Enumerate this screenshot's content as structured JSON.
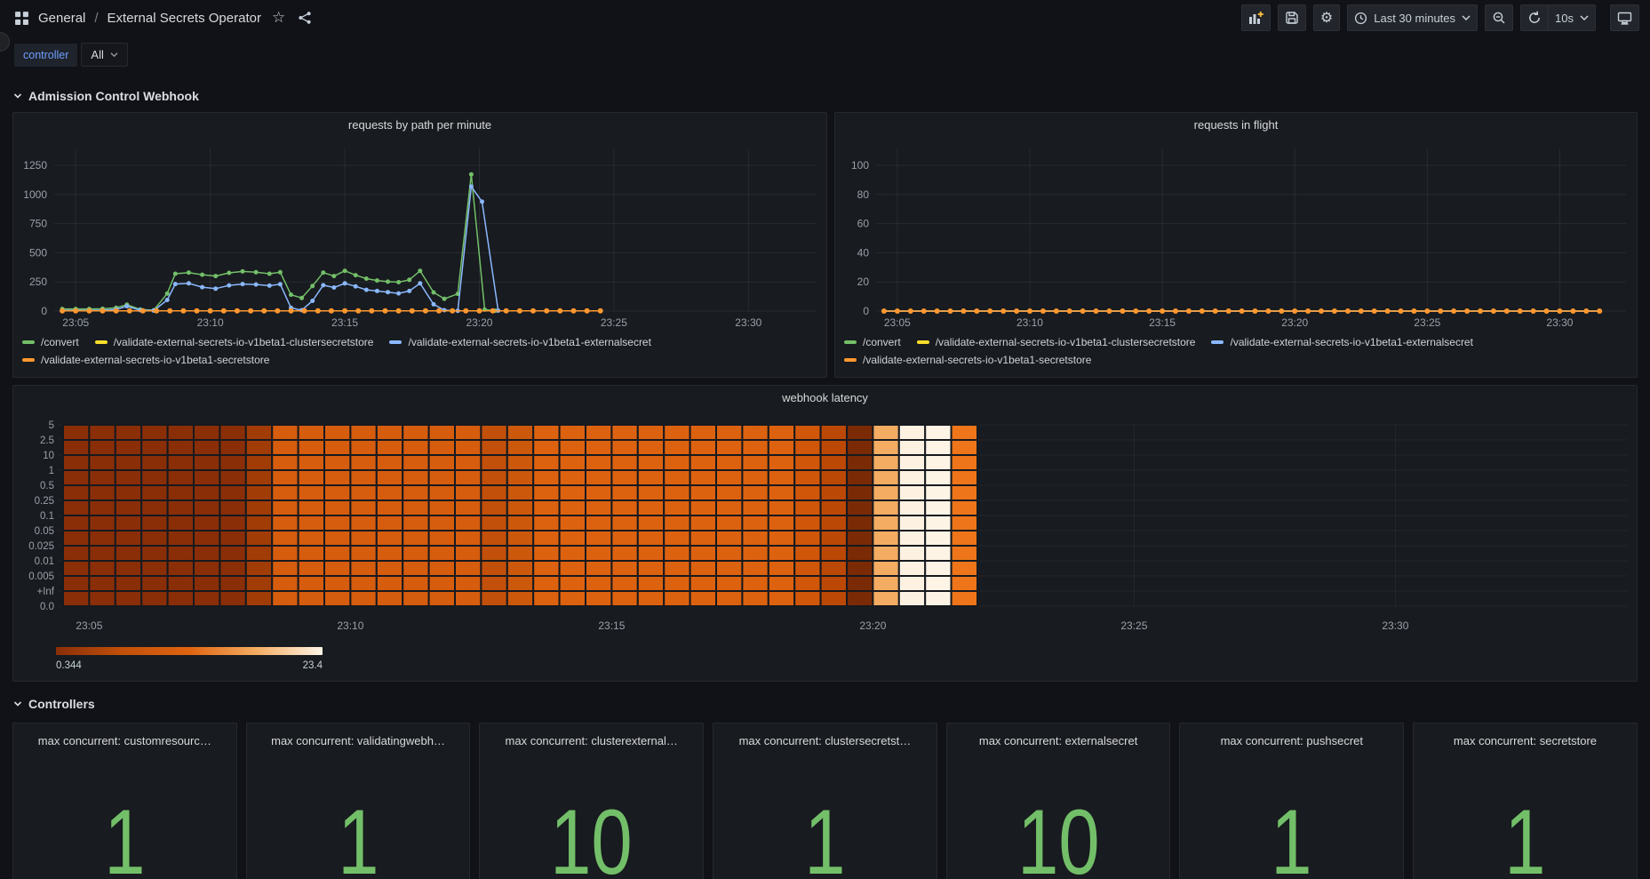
{
  "nav": {
    "breadcrumb": {
      "section": "General",
      "separator": "/",
      "title": "External Secrets Operator"
    },
    "time_range_label": "Last 30 minutes",
    "refresh_interval": "10s"
  },
  "icons": {
    "breadcrumb": "apps-grid-icon",
    "favorite": "star-icon",
    "share": "share-icon",
    "toolbar": [
      "panel-add-icon",
      "save-icon",
      "settings-icon",
      "clock-icon",
      "chevron-down-icon",
      "zoom-out-icon",
      "refresh-icon",
      "monitor-icon"
    ]
  },
  "variables": {
    "controller_label": "controller",
    "controller_value": "All"
  },
  "sections": {
    "admission": "Admission Control Webhook",
    "controllers": "Controllers"
  },
  "colors": {
    "green": "#73bf69",
    "yellow": "#fade2a",
    "blue": "#8ab8ff",
    "orange": "#ff9830",
    "stat_green": "#73bf69",
    "axis_text": "#9aa0ab",
    "grid": "rgba(255,255,255,0.07)"
  },
  "panels": {
    "requests_by_path": {
      "title": "requests by path per minute",
      "chart_data": {
        "type": "line",
        "x_axis": {
          "start_min": 4.2,
          "end_min": 32.5,
          "ticks": [
            5,
            10,
            15,
            20,
            25,
            30
          ],
          "tick_labels": [
            "23:05",
            "23:10",
            "23:15",
            "23:20",
            "23:25",
            "23:30"
          ]
        },
        "y_axis": {
          "min": 0,
          "max": 1250,
          "ticks": [
            0,
            250,
            500,
            750,
            1000,
            1250
          ]
        },
        "series": [
          {
            "name": "/convert",
            "color": "#73bf69",
            "dot_r": 2.5,
            "points": [
              [
                4.5,
                18
              ],
              [
                5,
                18
              ],
              [
                5.5,
                18
              ],
              [
                6,
                20
              ],
              [
                6.5,
                28
              ],
              [
                6.9,
                55
              ],
              [
                7.4,
                14
              ],
              [
                7.9,
                8
              ],
              [
                8.4,
                150
              ],
              [
                8.7,
                320
              ],
              [
                9.2,
                330
              ],
              [
                9.7,
                312
              ],
              [
                10.2,
                300
              ],
              [
                10.7,
                328
              ],
              [
                11.2,
                340
              ],
              [
                11.7,
                333
              ],
              [
                12.2,
                320
              ],
              [
                12.6,
                333
              ],
              [
                13,
                140
              ],
              [
                13.4,
                112
              ],
              [
                13.8,
                215
              ],
              [
                14.2,
                330
              ],
              [
                14.6,
                300
              ],
              [
                15,
                345
              ],
              [
                15.4,
                308
              ],
              [
                15.8,
                278
              ],
              [
                16.2,
                262
              ],
              [
                16.6,
                252
              ],
              [
                17,
                248
              ],
              [
                17.4,
                268
              ],
              [
                17.8,
                345
              ],
              [
                18.3,
                160
              ],
              [
                18.7,
                105
              ],
              [
                19.2,
                148
              ],
              [
                19.7,
                1172
              ],
              [
                20.2,
                12
              ],
              [
                20.6,
                3
              ]
            ]
          },
          {
            "name": "/validate-external-secrets-io-v1beta1-clustersecretstore",
            "color": "#fade2a",
            "dot_r": 2.5,
            "flat": {
              "start": 4.5,
              "end": 24.5,
              "step": 0.5,
              "value": 2
            }
          },
          {
            "name": "/validate-external-secrets-io-v1beta1-externalsecret",
            "color": "#8ab8ff",
            "dot_r": 2.5,
            "points": [
              [
                4.5,
                5
              ],
              [
                5,
                5
              ],
              [
                5.5,
                6
              ],
              [
                6,
                8
              ],
              [
                6.5,
                14
              ],
              [
                6.9,
                42
              ],
              [
                7.4,
                8
              ],
              [
                7.9,
                4
              ],
              [
                8.4,
                95
              ],
              [
                8.7,
                232
              ],
              [
                9.2,
                238
              ],
              [
                9.7,
                205
              ],
              [
                10.2,
                192
              ],
              [
                10.7,
                220
              ],
              [
                11.2,
                232
              ],
              [
                11.7,
                228
              ],
              [
                12.2,
                218
              ],
              [
                12.6,
                230
              ],
              [
                13,
                28
              ],
              [
                13.4,
                8
              ],
              [
                13.8,
                88
              ],
              [
                14.2,
                222
              ],
              [
                14.6,
                202
              ],
              [
                15,
                238
              ],
              [
                15.4,
                212
              ],
              [
                15.8,
                182
              ],
              [
                16.2,
                172
              ],
              [
                16.6,
                162
              ],
              [
                17,
                152
              ],
              [
                17.4,
                172
              ],
              [
                17.8,
                238
              ],
              [
                18.3,
                58
              ],
              [
                18.7,
                8
              ],
              [
                19.2,
                2
              ],
              [
                19.7,
                1068
              ],
              [
                20.1,
                938
              ],
              [
                20.7,
                4
              ]
            ]
          },
          {
            "name": "/validate-external-secrets-io-v1beta1-secretstore",
            "color": "#ff9830",
            "dot_r": 3,
            "flat": {
              "start": 4.5,
              "end": 24.5,
              "step": 0.5,
              "value": 2
            }
          }
        ]
      }
    },
    "requests_in_flight": {
      "title": "requests in flight",
      "chart_data": {
        "type": "line",
        "x_axis": {
          "start_min": 4.2,
          "end_min": 32.5,
          "ticks": [
            5,
            10,
            15,
            20,
            25,
            30
          ],
          "tick_labels": [
            "23:05",
            "23:10",
            "23:15",
            "23:20",
            "23:25",
            "23:30"
          ]
        },
        "y_axis": {
          "min": 0,
          "max": 100,
          "ticks": [
            0,
            20,
            40,
            60,
            80,
            100
          ]
        },
        "series": [
          {
            "name": "/convert",
            "color": "#73bf69",
            "dot_r": 2.5,
            "flat": {
              "start": 4.5,
              "end": 31.5,
              "step": 0.5,
              "value": 0
            }
          },
          {
            "name": "/validate-external-secrets-io-v1beta1-clustersecretstore",
            "color": "#fade2a",
            "dot_r": 2.5,
            "flat": {
              "start": 4.5,
              "end": 31.5,
              "step": 0.5,
              "value": 0
            }
          },
          {
            "name": "/validate-external-secrets-io-v1beta1-externalsecret",
            "color": "#8ab8ff",
            "dot_r": 2.5,
            "flat": {
              "start": 4.5,
              "end": 31.5,
              "step": 0.5,
              "value": 0
            }
          },
          {
            "name": "/validate-external-secrets-io-v1beta1-secretstore",
            "color": "#ff9830",
            "dot_r": 3,
            "flat": {
              "start": 4.5,
              "end": 31.5,
              "step": 0.5,
              "value": 0
            }
          }
        ]
      }
    },
    "webhook_latency": {
      "title": "webhook latency",
      "chart_data": {
        "type": "heatmap",
        "y_labels": [
          "5",
          "2.5",
          "10",
          "1",
          "0.5",
          "0.25",
          "0.1",
          "0.05",
          "0.025",
          "0.01",
          "0.005",
          "+Inf",
          "0.0"
        ],
        "rows": 12,
        "x_axis": {
          "ticks": [
            5,
            10,
            15,
            20,
            25,
            30
          ],
          "tick_labels": [
            "23:05",
            "23:10",
            "23:15",
            "23:20",
            "23:25",
            "23:30"
          ]
        },
        "col_start_min": 4.5,
        "col_duration_min": 0.5,
        "columns": [
          "#8a2e08",
          "#8a2e08",
          "#8a2e08",
          "#8a2e08",
          "#8a2e08",
          "#8a2e08",
          "#8a2e08",
          "#a23c06",
          "#d65c0e",
          "#d65c0e",
          "#d65c0e",
          "#d65c0e",
          "#d65c0e",
          "#d65c0e",
          "#d65c0e",
          "#d65c0e",
          "#c2500a",
          "#cc580c",
          "#dd620f",
          "#dd620f",
          "#dd620f",
          "#dd620f",
          "#dd620f",
          "#dd620f",
          "#dd620f",
          "#dd620f",
          "#dd620f",
          "#dd620f",
          "#d0560a",
          "#bc4806",
          "#7a2a04",
          "#f4ac62",
          "#fdf2e2",
          "#fdf4e6",
          "#ee7519"
        ],
        "scale": {
          "min_label": "0.344",
          "max_label": "23.4",
          "gradient": [
            "#8a2e08",
            "#c2500a",
            "#e06410",
            "#f4ac62",
            "#fdf4e6"
          ]
        }
      }
    },
    "stats": [
      {
        "title": "max concurrent: customresourc…",
        "value": "1"
      },
      {
        "title": "max concurrent: validatingwebh…",
        "value": "1"
      },
      {
        "title": "max concurrent: clusterexternal…",
        "value": "10"
      },
      {
        "title": "max concurrent: clustersecretst…",
        "value": "1"
      },
      {
        "title": "max concurrent: externalsecret",
        "value": "10"
      },
      {
        "title": "max concurrent: pushsecret",
        "value": "1"
      },
      {
        "title": "max concurrent: secretstore",
        "value": "1"
      }
    ]
  }
}
